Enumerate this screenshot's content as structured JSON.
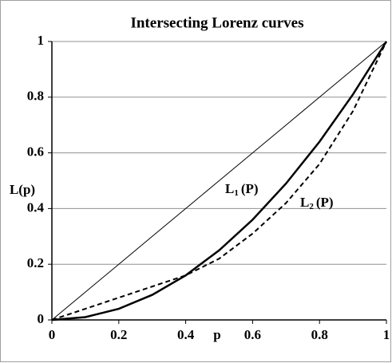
{
  "chart_data": {
    "type": "line",
    "title": "Intersecting Lorenz curves",
    "x_label": "p",
    "y_label": "L(p)",
    "x": [
      0,
      0.1,
      0.2,
      0.3,
      0.4,
      0.5,
      0.6,
      0.7,
      0.8,
      0.9,
      1
    ],
    "series": [
      {
        "color": "#000000",
        "style": "thin",
        "values": [
          0,
          0.1,
          0.2,
          0.3,
          0.4,
          0.5,
          0.6,
          0.7,
          0.8,
          0.9,
          1
        ]
      },
      {
        "color": "#000000",
        "style": "solid",
        "values": [
          0,
          0.01,
          0.04,
          0.09,
          0.16,
          0.25,
          0.36,
          0.49,
          0.64,
          0.81,
          1
        ]
      },
      {
        "color": "#000000",
        "style": "dashed",
        "values": [
          0,
          0.04,
          0.08,
          0.12,
          0.16,
          0.22,
          0.31,
          0.42,
          0.56,
          0.75,
          1
        ]
      }
    ],
    "annotations": [
      {
        "base": "L",
        "sub": "1",
        "rest": "(P)"
      },
      {
        "base": "L",
        "sub": "2",
        "rest": "(P)"
      }
    ],
    "xlim": [
      0,
      1
    ],
    "ylim": [
      0,
      1
    ],
    "xticks": [
      0,
      0.2,
      0.4,
      0.6,
      0.8,
      1
    ],
    "yticks": [
      0,
      0.2,
      0.4,
      0.6,
      0.8,
      1
    ],
    "grid": true
  }
}
